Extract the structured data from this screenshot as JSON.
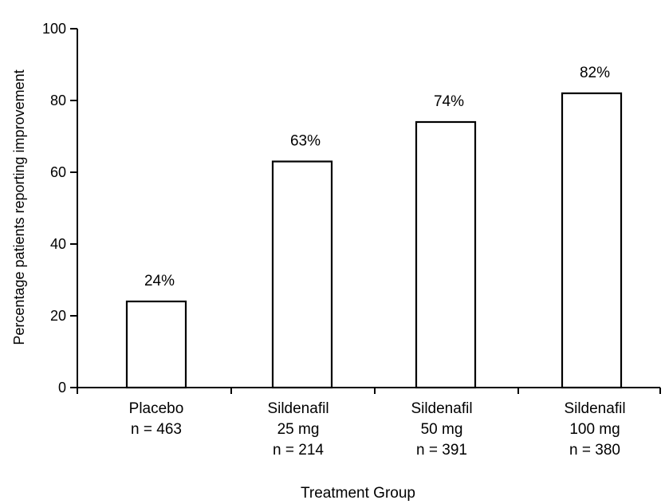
{
  "chart_data": {
    "type": "bar",
    "categories": [
      [
        "Placebo",
        "n = 463"
      ],
      [
        "Sildenafil",
        "25 mg",
        "n = 214"
      ],
      [
        "Sildenafil",
        "50 mg",
        "n = 391"
      ],
      [
        "Sildenafil",
        "100 mg",
        "n = 380"
      ]
    ],
    "values": [
      24,
      63,
      74,
      82
    ],
    "data_labels": [
      "24%",
      "63%",
      "74%",
      "82%"
    ],
    "xlabel": "Treatment Group",
    "ylabel": "Percentage patients reporting improvement",
    "ylim": [
      0,
      100
    ],
    "yticks": [
      0,
      20,
      40,
      60,
      80,
      100
    ],
    "bar_fill": "#ffffff",
    "bar_stroke": "#000000",
    "grid": false,
    "legend": "none"
  }
}
